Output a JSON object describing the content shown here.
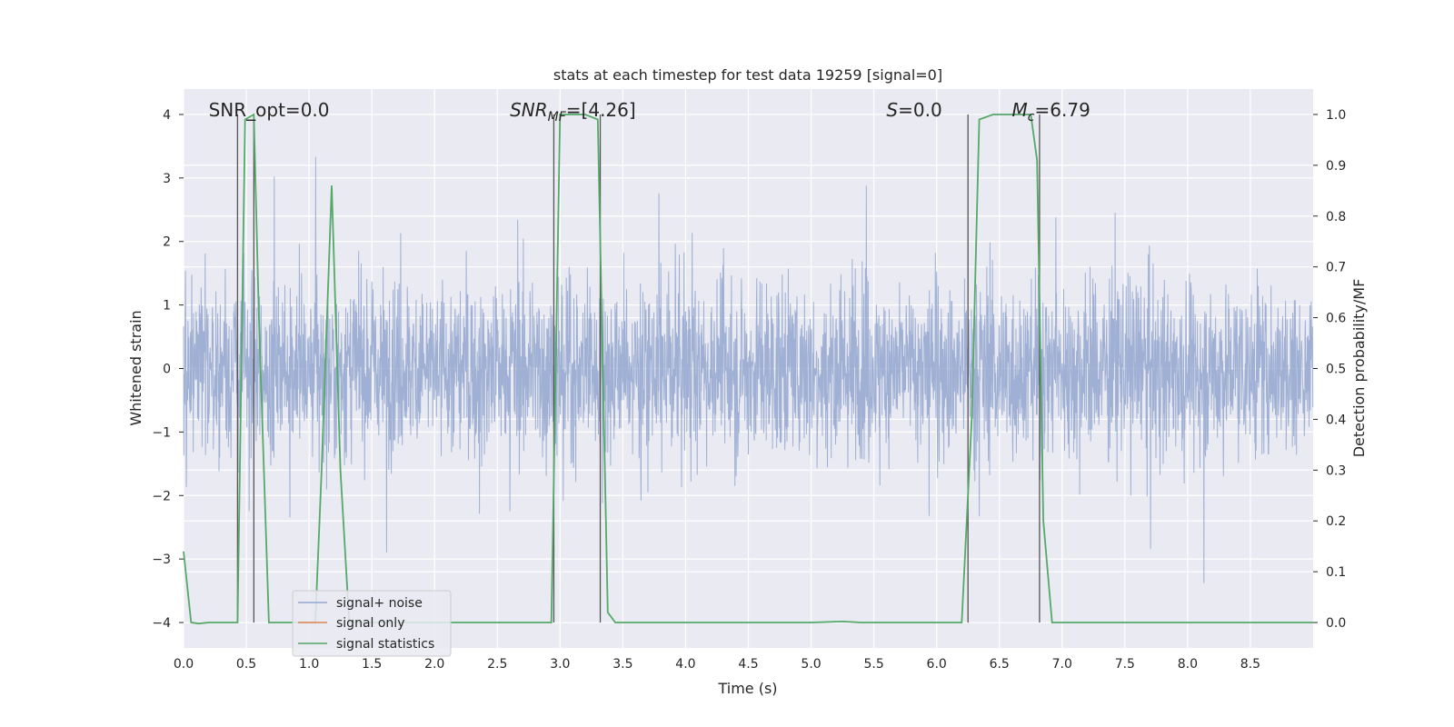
{
  "chart_data": {
    "type": "line",
    "title": "stats at each timestep for test data 19259 [signal=0]",
    "xlabel": "Time (s)",
    "ylabel": "Whitened strain",
    "ylabel_right": "Detection probability/MF",
    "xlim": [
      0.0,
      9.0
    ],
    "ylim": [
      -4.4,
      4.4
    ],
    "ylim_right": [
      -0.05,
      1.05
    ],
    "x_ticks": [
      0.0,
      0.5,
      1.0,
      1.5,
      2.0,
      2.5,
      3.0,
      3.5,
      4.0,
      4.5,
      5.0,
      5.5,
      6.0,
      6.5,
      7.0,
      7.5,
      8.0,
      8.5
    ],
    "x_tick_labels": [
      "0.0",
      "0.5",
      "1.0",
      "1.5",
      "2.0",
      "2.5",
      "3.0",
      "3.5",
      "4.0",
      "4.5",
      "5.0",
      "5.5",
      "6.0",
      "6.5",
      "7.0",
      "7.5",
      "8.0",
      "8.5"
    ],
    "y_ticks": [
      -4,
      -3,
      -2,
      -1,
      0,
      1,
      2,
      3,
      4
    ],
    "y_tick_labels": [
      "−4",
      "−3",
      "−2",
      "−1",
      "0",
      "1",
      "2",
      "3",
      "4"
    ],
    "y_right_ticks": [
      0.0,
      0.1,
      0.2,
      0.3,
      0.4,
      0.5,
      0.6,
      0.7,
      0.8,
      0.9,
      1.0
    ],
    "y_right_tick_labels": [
      "0.0",
      "0.1",
      "0.2",
      "0.3",
      "0.4",
      "0.5",
      "0.6",
      "0.7",
      "0.8",
      "0.9",
      "1.0"
    ],
    "grid": true,
    "legend_position": "lower-left",
    "annotations": [
      {
        "id": "snr-opt",
        "text": "SNR_opt=0.0",
        "x": 0.2,
        "y": 4.0
      },
      {
        "id": "snr-mf",
        "text": "SNR",
        "sub": "MF",
        "rest": "=[4.26]",
        "x": 2.6,
        "y": 4.0
      },
      {
        "id": "s-value",
        "text": "S",
        "rest": "=0.0",
        "x": 5.6,
        "y": 4.0
      },
      {
        "id": "mc-value",
        "text": "M",
        "sub": "c",
        "rest": "=6.79",
        "x": 6.6,
        "y": 4.0
      }
    ],
    "vertical_lines": [
      0.43,
      0.56,
      2.95,
      3.32,
      6.25,
      6.82
    ],
    "series": [
      {
        "name": "signal+ noise",
        "color": "#92a6cf",
        "kind": "noise",
        "sample_rate_hz": 400,
        "duration_s": 9.0,
        "envelope_typical": 1.7,
        "peak_max": 3.9,
        "trough_min": -4.0
      },
      {
        "name": "signal only",
        "color": "#dd8452",
        "kind": "flat",
        "value": 0.0
      },
      {
        "name": "signal statistics",
        "color": "#55a868",
        "axis": "right",
        "x": [
          0.0,
          0.06,
          0.12,
          0.2,
          0.3,
          0.43,
          0.49,
          0.56,
          0.6,
          0.68,
          0.75,
          0.9,
          1.05,
          1.1,
          1.18,
          1.25,
          1.32,
          1.4,
          1.6,
          2.0,
          2.5,
          2.93,
          3.0,
          3.1,
          3.2,
          3.3,
          3.38,
          3.44,
          3.6,
          4.0,
          4.5,
          5.0,
          5.25,
          5.4,
          5.8,
          6.2,
          6.28,
          6.34,
          6.45,
          6.6,
          6.75,
          6.8,
          6.85,
          6.92,
          7.0,
          7.5,
          8.0,
          8.5,
          9.0
        ],
        "values": [
          0.14,
          0.0,
          -0.002,
          0.0,
          0.0,
          0.0,
          0.99,
          1.0,
          0.6,
          0.0,
          0.0,
          0.0,
          0.0,
          0.3,
          0.86,
          0.3,
          0.0,
          0.0,
          0.0,
          0.0,
          0.0,
          0.0,
          1.0,
          1.0,
          1.0,
          0.99,
          0.02,
          0.0,
          0.0,
          0.0,
          0.0,
          0.0,
          0.002,
          0.0,
          0.0,
          0.0,
          0.4,
          0.99,
          1.0,
          1.0,
          1.0,
          0.91,
          0.2,
          0.0,
          0.0,
          0.0,
          0.0,
          0.0,
          0.0
        ]
      }
    ]
  }
}
